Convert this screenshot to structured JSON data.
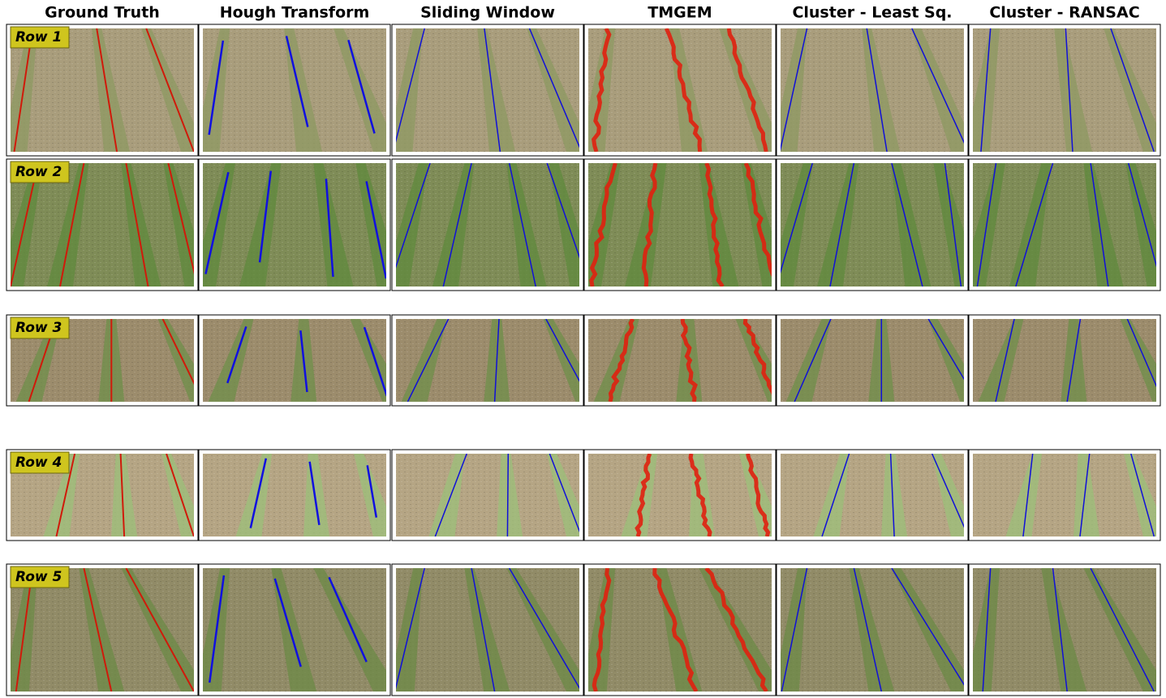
{
  "columns": [
    "Ground Truth",
    "Hough Transform",
    "Sliding Window",
    "TMGEM",
    "Cluster - Least Sq.",
    "Cluster - RANSAC"
  ],
  "rows": [
    "Row 1",
    "Row 2",
    "Row 3",
    "Row 4",
    "Row 5"
  ]
}
